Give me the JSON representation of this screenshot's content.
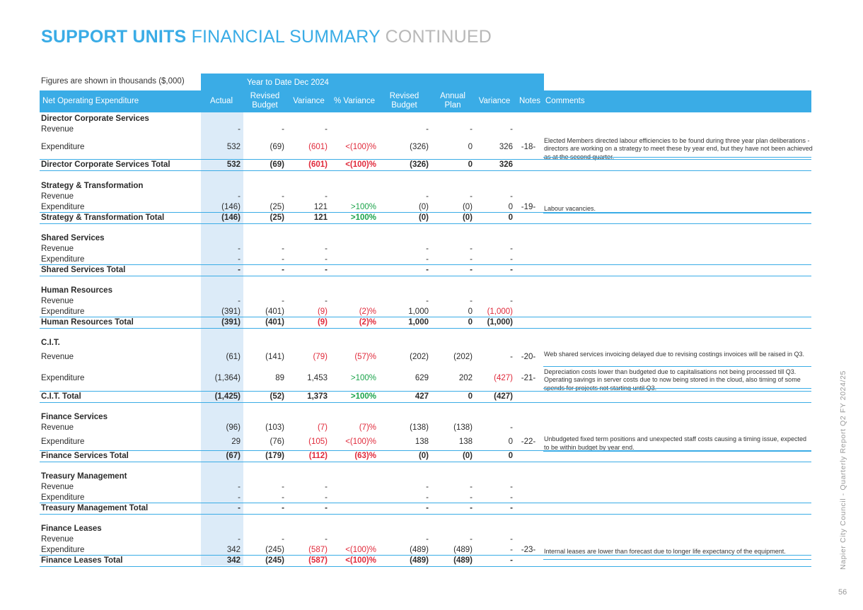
{
  "title": {
    "part1": "SUPPORT UNITS",
    "part2": "FINANCIAL SUMMARY",
    "part3": "CONTINUED"
  },
  "figures_note": "Figures are shown in thousands ($,000)",
  "period_label": "Year to Date  Dec 2024",
  "headers": {
    "name": "Net Operating Expenditure",
    "actual": "Actual",
    "revised_budget_ytd": "Revised Budget",
    "variance_ytd": "Variance",
    "pct_variance": "% Variance",
    "revised_budget": "Revised Budget",
    "annual_plan": "Annual Plan",
    "variance": "Variance",
    "notes": "Notes",
    "comments": "Comments"
  },
  "rows": [
    {
      "type": "section",
      "label": "Director Corporate Services"
    },
    {
      "type": "line",
      "label": "Revenue",
      "actual": "-",
      "rb": "-",
      "var": "-",
      "pct": "",
      "rb2": "-",
      "plan": "-",
      "var2": "-",
      "note": "",
      "comment": ""
    },
    {
      "type": "line",
      "label": "Expenditure",
      "actual": "532",
      "rb": "(69)",
      "var": "(601)",
      "pct": "<(100)%",
      "rb2": "(326)",
      "plan": "0",
      "var2": "326",
      "note": "-18-",
      "comment": "Elected Members directed labour efficiencies to be found during three year plan deliberations - directors are working on a strategy to meet these by year end, but they have not been achieved as at the second quarter.",
      "var_color": "red",
      "pct_color": "red"
    },
    {
      "type": "total",
      "label": "Director Corporate Services Total",
      "actual": "532",
      "rb": "(69)",
      "var": "(601)",
      "pct": "<(100)%",
      "rb2": "(326)",
      "plan": "0",
      "var2": "326",
      "var_color": "red",
      "pct_color": "red"
    },
    {
      "type": "section",
      "label": "Strategy & Transformation"
    },
    {
      "type": "line",
      "label": "Revenue",
      "actual": "-",
      "rb": "-",
      "var": "-",
      "pct": "",
      "rb2": "-",
      "plan": "-",
      "var2": "-",
      "note": "",
      "comment": ""
    },
    {
      "type": "line",
      "label": "Expenditure",
      "actual": "(146)",
      "rb": "(25)",
      "var": "121",
      "pct": ">100%",
      "rb2": "(0)",
      "plan": "(0)",
      "var2": "0",
      "note": "-19-",
      "comment": "Labour vacancies.",
      "pct_color": "green"
    },
    {
      "type": "total",
      "label": "Strategy & Transformation Total",
      "actual": "(146)",
      "rb": "(25)",
      "var": "121",
      "pct": ">100%",
      "rb2": "(0)",
      "plan": "(0)",
      "var2": "0",
      "pct_color": "green"
    },
    {
      "type": "section",
      "label": "Shared Services"
    },
    {
      "type": "line",
      "label": "Revenue",
      "actual": "-",
      "rb": "-",
      "var": "-",
      "pct": "",
      "rb2": "-",
      "plan": "-",
      "var2": "-",
      "note": "",
      "comment": ""
    },
    {
      "type": "line",
      "label": "Expenditure",
      "actual": "-",
      "rb": "-",
      "var": "-",
      "pct": "",
      "rb2": "-",
      "plan": "-",
      "var2": "-",
      "note": "",
      "comment": ""
    },
    {
      "type": "total",
      "label": "Shared Services Total",
      "actual": "-",
      "rb": "-",
      "var": "-",
      "pct": "",
      "rb2": "-",
      "plan": "-",
      "var2": "-"
    },
    {
      "type": "section",
      "label": "Human Resources"
    },
    {
      "type": "line",
      "label": "Revenue",
      "actual": "-",
      "rb": "-",
      "var": "-",
      "pct": "",
      "rb2": "-",
      "plan": "-",
      "var2": "-",
      "note": "",
      "comment": ""
    },
    {
      "type": "line",
      "label": "Expenditure",
      "actual": "(391)",
      "rb": "(401)",
      "var": "(9)",
      "pct": "(2)%",
      "rb2": "1,000",
      "plan": "0",
      "var2": "(1,000)",
      "note": "",
      "comment": "",
      "var_color": "red",
      "pct_color": "red",
      "var2_color": "red"
    },
    {
      "type": "total",
      "label": "Human Resources Total",
      "actual": "(391)",
      "rb": "(401)",
      "var": "(9)",
      "pct": "(2)%",
      "rb2": "1,000",
      "plan": "0",
      "var2": "(1,000)",
      "var_color": "red",
      "pct_color": "red"
    },
    {
      "type": "section",
      "label": "C.I.T."
    },
    {
      "type": "line",
      "label": "Revenue",
      "actual": "(61)",
      "rb": "(141)",
      "var": "(79)",
      "pct": "(57)%",
      "rb2": "(202)",
      "plan": "(202)",
      "var2": "-",
      "note": "-20-",
      "comment": "Web shared services invoicing delayed due to revising costings invoices will be raised in Q3.",
      "var_color": "red",
      "pct_color": "red"
    },
    {
      "type": "line",
      "label": "Expenditure",
      "actual": "(1,364)",
      "rb": "89",
      "var": "1,453",
      "pct": ">100%",
      "rb2": "629",
      "plan": "202",
      "var2": "(427)",
      "note": "-21-",
      "comment": "Depreciation costs lower than budgeted due to capitalisations not being processed till Q3. Operating savings in server costs due to now being stored in the cloud, also timing of some spends for projects not starting until Q3.",
      "pct_color": "green",
      "var2_color": "red"
    },
    {
      "type": "total",
      "label": "C.I.T. Total",
      "actual": "(1,425)",
      "rb": "(52)",
      "var": "1,373",
      "pct": ">100%",
      "rb2": "427",
      "plan": "0",
      "var2": "(427)",
      "pct_color": "green"
    },
    {
      "type": "section",
      "label": "Finance Services"
    },
    {
      "type": "line",
      "label": "Revenue",
      "actual": "(96)",
      "rb": "(103)",
      "var": "(7)",
      "pct": "(7)%",
      "rb2": "(138)",
      "plan": "(138)",
      "var2": "-",
      "note": "",
      "comment": "",
      "var_color": "red",
      "pct_color": "red"
    },
    {
      "type": "line",
      "label": "Expenditure",
      "actual": "29",
      "rb": "(76)",
      "var": "(105)",
      "pct": "<(100)%",
      "rb2": "138",
      "plan": "138",
      "var2": "0",
      "note": "-22-",
      "comment": "Unbudgeted fixed term positions and unexpected staff costs causing a timing issue, expected to be within budget by year end.",
      "var_color": "red",
      "pct_color": "red"
    },
    {
      "type": "total",
      "label": "Finance Services Total",
      "actual": "(67)",
      "rb": "(179)",
      "var": "(112)",
      "pct": "(63)%",
      "rb2": "(0)",
      "plan": "(0)",
      "var2": "0",
      "var_color": "red",
      "pct_color": "red"
    },
    {
      "type": "section",
      "label": "Treasury Management"
    },
    {
      "type": "line",
      "label": "Revenue",
      "actual": "-",
      "rb": "-",
      "var": "-",
      "pct": "",
      "rb2": "-",
      "plan": "-",
      "var2": "-",
      "note": "",
      "comment": ""
    },
    {
      "type": "line",
      "label": "Expenditure",
      "actual": "-",
      "rb": "-",
      "var": "-",
      "pct": "",
      "rb2": "-",
      "plan": "-",
      "var2": "-",
      "note": "",
      "comment": ""
    },
    {
      "type": "total",
      "label": "Treasury Management Total",
      "actual": "-",
      "rb": "-",
      "var": "-",
      "pct": "",
      "rb2": "-",
      "plan": "-",
      "var2": "-"
    },
    {
      "type": "section",
      "label": "Finance Leases"
    },
    {
      "type": "line",
      "label": "Revenue",
      "actual": "-",
      "rb": "-",
      "var": "-",
      "pct": "",
      "rb2": "-",
      "plan": "-",
      "var2": "-",
      "note": "",
      "comment": ""
    },
    {
      "type": "line",
      "label": "Expenditure",
      "actual": "342",
      "rb": "(245)",
      "var": "(587)",
      "pct": "<(100)%",
      "rb2": "(489)",
      "plan": "(489)",
      "var2": "-",
      "note": "-23-",
      "comment": "Internal leases are lower than forecast due to longer life expectancy of the equipment.",
      "var_color": "red",
      "pct_color": "red"
    },
    {
      "type": "total",
      "label": "Finance Leases Total",
      "actual": "342",
      "rb": "(245)",
      "var": "(587)",
      "pct": "<(100)%",
      "rb2": "(489)",
      "plan": "(489)",
      "var2": "-",
      "var_color": "red",
      "pct_color": "red"
    }
  ],
  "side_text": "Napier City Council - Quarterly Report Q2 FY 2024/25",
  "page_number": "56",
  "colors": {
    "accent": "#3aace6",
    "negative": "#e0293a",
    "positive": "#1aa34a",
    "actual_band": "#dcebf8"
  }
}
